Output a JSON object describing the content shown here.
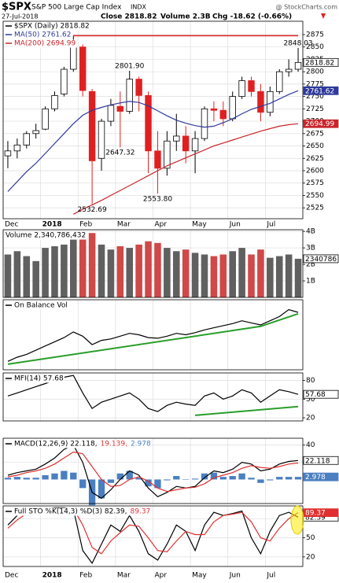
{
  "header": {
    "symbol": "$SPX",
    "name": "S&P 500 Large Cap Index",
    "exchange": "INDX",
    "source": "@ StockCharts.com",
    "date": "27-Jul-2018",
    "close": "Close 2818.82",
    "volume": "Volume 2.3B",
    "change": "Chg -18.62 (-0.66%)"
  },
  "chart_data": [
    {
      "type": "candlestick",
      "categories": [
        "Dec",
        null,
        null,
        null,
        "2018",
        null,
        null,
        null,
        "Feb",
        null,
        null,
        null,
        "Mar",
        null,
        null,
        null,
        "Apr",
        null,
        null,
        null,
        "May",
        null,
        null,
        null,
        "Jun",
        null,
        null,
        null,
        "Jul",
        null,
        null,
        null
      ],
      "ylim": [
        2503,
        2902
      ],
      "yticks": [
        2525,
        2550,
        2575,
        2600,
        2625,
        2650,
        2675,
        2700,
        2725,
        2750,
        2775,
        2800,
        2825,
        2850,
        2875
      ],
      "grid": true,
      "series": [
        {
          "name": "$SPX (Daily) 2818.82",
          "color": "#000000",
          "down_color": "#e02020",
          "tag": 2818.82,
          "open": [
            2630,
            2640,
            2652,
            2675,
            2684,
            2725,
            2755,
            2805,
            2850,
            2760,
            2625,
            2700,
            2730,
            2720,
            2785,
            2752,
            2640,
            2605,
            2660,
            2670,
            2640,
            2665,
            2725,
            2722,
            2705,
            2750,
            2782,
            2760,
            2718,
            2760,
            2800,
            2805
          ],
          "high": [
            2660,
            2665,
            2680,
            2695,
            2730,
            2760,
            2810,
            2872.87,
            2855,
            2765,
            2705,
            2745,
            2760,
            2801.9,
            2790,
            2760,
            2680,
            2680,
            2715,
            2690,
            2680,
            2730,
            2740,
            2740,
            2760,
            2790,
            2790,
            2775,
            2770,
            2805,
            2825,
            2848.03
          ],
          "low": [
            2605,
            2625,
            2645,
            2665,
            2682,
            2720,
            2750,
            2800,
            2750,
            2532.69,
            2600,
            2690,
            2647.32,
            2715,
            2720,
            2595,
            2553.8,
            2590,
            2640,
            2615,
            2595,
            2660,
            2700,
            2690,
            2700,
            2745,
            2750,
            2700,
            2710,
            2755,
            2790,
            2800
          ],
          "close": [
            2640,
            2652,
            2675,
            2681,
            2725,
            2752,
            2805,
            2858,
            2762,
            2620,
            2700,
            2732,
            2720,
            2785,
            2752,
            2640,
            2605,
            2660,
            2670,
            2640,
            2665,
            2725,
            2722,
            2705,
            2750,
            2782,
            2760,
            2718,
            2760,
            2800,
            2805,
            2818.82
          ]
        },
        {
          "name": "MA(50) 2761.62",
          "color": "#2e3a9b",
          "tag": 2761.62,
          "values": [
            2558,
            2578,
            2598,
            2615,
            2635,
            2655,
            2675,
            2695,
            2712,
            2722,
            2728,
            2733,
            2737,
            2740,
            2738,
            2731,
            2721,
            2711,
            2702,
            2696,
            2691,
            2688,
            2690,
            2697,
            2705,
            2715,
            2724,
            2730,
            2736,
            2745,
            2754,
            2761.62
          ]
        },
        {
          "name": "MA(200) 2694.99",
          "color": "#c8252b",
          "tag": 2694.99,
          "values": [
            null,
            null,
            null,
            null,
            null,
            null,
            null,
            2512,
            2522,
            2531,
            2540,
            2550,
            2560,
            2570,
            2580,
            2590,
            2600,
            2610,
            2618,
            2626,
            2634,
            2642,
            2650,
            2656,
            2662,
            2668,
            2674,
            2680,
            2685,
            2690,
            2693,
            2694.99
          ]
        }
      ],
      "hlines": [
        {
          "value": 2872.87,
          "color": "#e02020",
          "x": [
            7,
            31
          ]
        }
      ],
      "annotations": [
        {
          "x": 31,
          "value": 2848.03,
          "position": "above"
        },
        {
          "x": 13,
          "value": 2801.9,
          "label": "2801.90",
          "position": "above"
        },
        {
          "x": 12,
          "value": 2647.32,
          "position": "below"
        },
        {
          "x": 9,
          "value": 2532.69,
          "position": "below"
        },
        {
          "x": 16,
          "value": 2553.8,
          "label": "2553.80",
          "position": "below"
        }
      ]
    },
    {
      "type": "bar",
      "title": "Volume 2,340,786,432",
      "up_color": "#606060",
      "down_color": "#d04848",
      "values": [
        2600000000,
        2800000000,
        2500000000,
        2200000000,
        3000000000,
        3100000000,
        3200000000,
        3500000000,
        3800000000,
        3900000000,
        3200000000,
        2900000000,
        3100000000,
        3000000000,
        3200000000,
        3400000000,
        3300000000,
        3000000000,
        2800000000,
        2900000000,
        2700000000,
        2600000000,
        2500000000,
        2600000000,
        2800000000,
        3000000000,
        2600000000,
        2900000000,
        2400000000,
        2500000000,
        2600000000,
        2340786432
      ],
      "ylim": [
        0,
        4100000000
      ],
      "yticks": [
        {
          "value": 1000000000,
          "label": "1B"
        },
        {
          "value": 2000000000,
          "label": "2B"
        },
        {
          "value": 3000000000,
          "label": "3B"
        },
        {
          "value": 4000000000,
          "label": "4B"
        }
      ],
      "grid": true,
      "tag_label": "2340786"
    },
    {
      "type": "line",
      "ylim": [
        0,
        100
      ],
      "yticks": [],
      "grid": true,
      "series": [
        {
          "name": "On Balance Vol",
          "color": "#000000",
          "values": [
            12,
            18,
            22,
            28,
            34,
            40,
            46,
            54,
            48,
            36,
            42,
            44,
            48,
            52,
            50,
            46,
            45,
            48,
            52,
            50,
            53,
            57,
            60,
            63,
            66,
            70,
            67,
            64,
            70,
            76,
            86,
            82
          ]
        }
      ],
      "trendlines": [
        {
          "x": [
            0,
            27,
            31
          ],
          "values": [
            8,
            62,
            80
          ],
          "color": "#2a9d2a"
        }
      ]
    },
    {
      "type": "line",
      "ylim": [
        15,
        92
      ],
      "yticks": [
        20,
        50,
        80
      ],
      "grid": true,
      "series": [
        {
          "name": "MFI(14) 57.68",
          "color": "#000000",
          "tag": 57.68,
          "values": [
            55,
            60,
            65,
            70,
            75,
            80,
            85,
            88,
            60,
            35,
            45,
            50,
            55,
            60,
            50,
            35,
            30,
            40,
            45,
            42,
            40,
            55,
            60,
            50,
            55,
            65,
            60,
            45,
            55,
            65,
            62,
            57.68
          ]
        }
      ],
      "trendlines": [
        {
          "x": [
            20,
            31
          ],
          "values": [
            24,
            38
          ],
          "color": "#2a9d2a"
        }
      ]
    },
    {
      "type": "line",
      "ylim": [
        -28,
        48
      ],
      "yticks": [
        20,
        40
      ],
      "grid": true,
      "series": [
        {
          "name": "MACD(12,26,9) 22.118,",
          "color": "#000000",
          "tag": 22.118,
          "values": [
            5,
            8,
            10,
            12,
            18,
            25,
            35,
            40,
            20,
            -15,
            -22,
            -12,
            0,
            10,
            5,
            -10,
            -20,
            -15,
            -8,
            -10,
            -8,
            2,
            10,
            8,
            12,
            20,
            18,
            10,
            12,
            18,
            21,
            22.118
          ]
        },
        {
          "name": "19.139,",
          "color": "#e03030",
          "values": [
            3,
            5,
            8,
            10,
            13,
            18,
            25,
            32,
            30,
            15,
            0,
            -8,
            -7,
            0,
            3,
            -2,
            -10,
            -14,
            -12,
            -10,
            -9,
            -5,
            2,
            5,
            8,
            13,
            16,
            14,
            13,
            15,
            18,
            19.139
          ]
        },
        {
          "name": "2.978",
          "color": "#4a7fc1",
          "style": "histogram",
          "tag": 2.978,
          "values": [
            2,
            3,
            2,
            2,
            5,
            7,
            10,
            8,
            -10,
            -30,
            -22,
            -4,
            7,
            10,
            2,
            -8,
            -10,
            -1,
            4,
            0,
            1,
            7,
            8,
            3,
            4,
            7,
            2,
            -4,
            -1,
            3,
            3,
            2.978
          ]
        }
      ]
    },
    {
      "type": "line",
      "ylim": [
        5,
        100
      ],
      "yticks": [
        20,
        50,
        80
      ],
      "grid": true,
      "series": [
        {
          "name": "Full STO %K(14,3) %D(3) 82.39,",
          "color": "#000000",
          "tag": 82.39,
          "values": [
            70,
            85,
            90,
            92,
            95,
            97,
            97,
            95,
            30,
            10,
            40,
            70,
            60,
            85,
            60,
            25,
            15,
            40,
            70,
            60,
            30,
            70,
            90,
            85,
            88,
            92,
            50,
            25,
            60,
            85,
            90,
            82.39
          ]
        },
        {
          "name": "89.37",
          "color": "#e03030",
          "tag": 89.37,
          "values": [
            65,
            78,
            88,
            90,
            93,
            95,
            96,
            96,
            70,
            35,
            25,
            45,
            58,
            70,
            68,
            50,
            30,
            28,
            45,
            60,
            55,
            55,
            75,
            85,
            87,
            90,
            75,
            50,
            45,
            65,
            80,
            89.37
          ]
        }
      ]
    }
  ]
}
